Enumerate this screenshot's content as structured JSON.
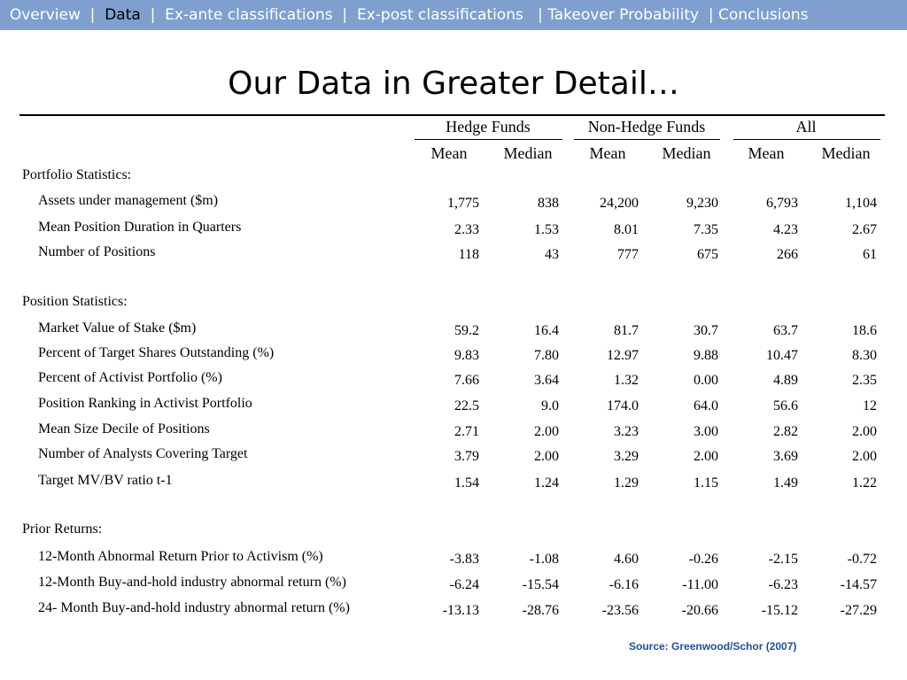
{
  "nav": {
    "items": [
      {
        "label": "Overview",
        "active": false
      },
      {
        "label": "Data",
        "active": true
      },
      {
        "label": "Ex-ante classifications",
        "active": false
      },
      {
        "label": "Ex-post classifications",
        "active": false
      },
      {
        "label": "Takeover Probability",
        "active": false
      },
      {
        "label": "Conclusions",
        "active": false
      }
    ],
    "separator": "|",
    "bar_color": "#7f9fcf"
  },
  "title": "Our Data in Greater Detail…",
  "table": {
    "groups": [
      "Hedge Funds",
      "Non-Hedge Funds",
      "All"
    ],
    "subheaders": [
      "Mean",
      "Median",
      "Mean",
      "Median",
      "Mean",
      "Median"
    ],
    "sections": [
      {
        "name": "Portfolio Statistics:",
        "rows": [
          {
            "label": "Assets under management ($m)",
            "values": [
              "1,775",
              "838",
              "24,200",
              "9,230",
              "6,793",
              "1,104"
            ]
          },
          {
            "label": "Mean Position Duration in Quarters",
            "values": [
              "2.33",
              "1.53",
              "8.01",
              "7.35",
              "4.23",
              "2.67"
            ]
          },
          {
            "label": "Number of Positions",
            "values": [
              "118",
              "43",
              "777",
              "675",
              "266",
              "61"
            ]
          }
        ]
      },
      {
        "name": "Position Statistics:",
        "rows": [
          {
            "label": "Market Value of Stake ($m)",
            "values": [
              "59.2",
              "16.4",
              "81.7",
              "30.7",
              "63.7",
              "18.6"
            ]
          },
          {
            "label": "Percent of Target Shares Outstanding (%)",
            "values": [
              "9.83",
              "7.80",
              "12.97",
              "9.88",
              "10.47",
              "8.30"
            ]
          },
          {
            "label": "Percent of Activist Portfolio (%)",
            "values": [
              "7.66",
              "3.64",
              "1.32",
              "0.00",
              "4.89",
              "2.35"
            ]
          },
          {
            "label": "Position Ranking in Activist Portfolio",
            "values": [
              "22.5",
              "9.0",
              "174.0",
              "64.0",
              "56.6",
              "12"
            ]
          },
          {
            "label": "Mean Size Decile of Positions",
            "values": [
              "2.71",
              "2.00",
              "3.23",
              "3.00",
              "2.82",
              "2.00"
            ]
          },
          {
            "label": "Number of Analysts Covering Target",
            "values": [
              "3.79",
              "2.00",
              "3.29",
              "2.00",
              "3.69",
              "2.00"
            ]
          },
          {
            "label": "Target MV/BV ratio t-1",
            "values": [
              "1.54",
              "1.24",
              "1.29",
              "1.15",
              "1.49",
              "1.22"
            ]
          }
        ]
      },
      {
        "name": "Prior Returns:",
        "rows": [
          {
            "label": "12-Month Abnormal Return Prior to Activism (%)",
            "values": [
              "-3.83",
              "-1.08",
              "4.60",
              "-0.26",
              "-2.15",
              "-0.72"
            ]
          },
          {
            "label": "12-Month Buy-and-hold industry abnormal return (%)",
            "values": [
              "-6.24",
              "-15.54",
              "-6.16",
              "-11.00",
              "-6.23",
              "-14.57"
            ]
          },
          {
            "label": "24- Month Buy-and-hold industry abnormal return (%)",
            "values": [
              "-13.13",
              "-28.76",
              "-23.56",
              "-20.66",
              "-15.12",
              "-27.29"
            ]
          }
        ]
      }
    ]
  },
  "source": "Source: Greenwood/Schor (2007)"
}
